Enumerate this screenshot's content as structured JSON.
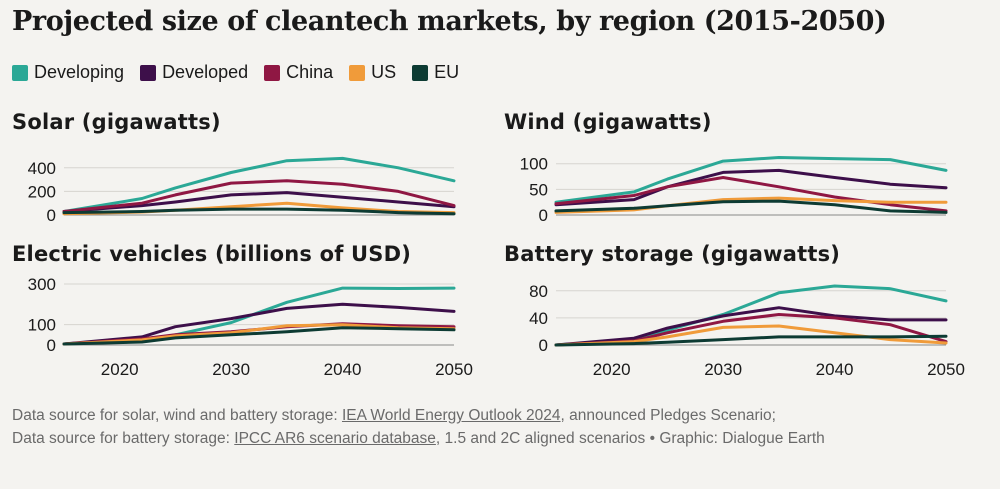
{
  "title": "Projected size of cleantech markets, by region (2015-2050)",
  "legend": [
    {
      "label": "Developing",
      "color": "#2ba896"
    },
    {
      "label": "Developed",
      "color": "#3d0f4a"
    },
    {
      "label": "China",
      "color": "#8f1743"
    },
    {
      "label": "US",
      "color": "#f09b3a"
    },
    {
      "label": "EU",
      "color": "#0d3b33"
    }
  ],
  "source": {
    "line1_prefix": "Data source for solar, wind and battery storage: ",
    "line1_link": "IEA World Energy Outlook 2024",
    "line1_suffix": ", announced Pledges Scenario;",
    "line2_prefix": "Data source for battery storage: ",
    "line2_link": "IPCC AR6 scenario database",
    "line2_suffix": ", 1.5 and 2C aligned scenarios • Graphic: Dialogue Earth"
  },
  "chart_data": [
    {
      "type": "line",
      "title": "Solar (gigawatts)",
      "x": [
        2015,
        2022,
        2025,
        2030,
        2035,
        2040,
        2045,
        2050
      ],
      "xlim": [
        2015,
        2050
      ],
      "ylim": [
        0,
        500
      ],
      "yticks": [
        0,
        200,
        400
      ],
      "xticks": [
        2020,
        2030,
        2040,
        2050
      ],
      "series": [
        {
          "name": "Developing",
          "color": "#2ba896",
          "values": [
            30,
            140,
            230,
            360,
            460,
            480,
            400,
            290
          ]
        },
        {
          "name": "Developed",
          "color": "#3d0f4a",
          "values": [
            30,
            80,
            110,
            170,
            190,
            150,
            110,
            70
          ]
        },
        {
          "name": "China",
          "color": "#8f1743",
          "values": [
            30,
            100,
            170,
            270,
            290,
            260,
            200,
            80
          ]
        },
        {
          "name": "US",
          "color": "#f09b3a",
          "values": [
            10,
            25,
            40,
            70,
            100,
            60,
            30,
            20
          ]
        },
        {
          "name": "EU",
          "color": "#0d3b33",
          "values": [
            20,
            30,
            40,
            50,
            50,
            40,
            20,
            10
          ]
        }
      ]
    },
    {
      "type": "line",
      "title": "Wind (gigawatts)",
      "x": [
        2015,
        2022,
        2025,
        2030,
        2035,
        2040,
        2045,
        2050
      ],
      "xlim": [
        2015,
        2050
      ],
      "ylim": [
        0,
        115
      ],
      "yticks": [
        0,
        50,
        100
      ],
      "xticks": [
        2020,
        2030,
        2040,
        2050
      ],
      "series": [
        {
          "name": "Developing",
          "color": "#2ba896",
          "values": [
            25,
            45,
            70,
            105,
            112,
            110,
            108,
            87
          ]
        },
        {
          "name": "Developed",
          "color": "#3d0f4a",
          "values": [
            20,
            30,
            55,
            83,
            87,
            73,
            60,
            53
          ]
        },
        {
          "name": "China",
          "color": "#8f1743",
          "values": [
            22,
            38,
            55,
            73,
            55,
            35,
            20,
            8
          ]
        },
        {
          "name": "US",
          "color": "#f09b3a",
          "values": [
            5,
            10,
            18,
            30,
            33,
            28,
            25,
            25
          ]
        },
        {
          "name": "EU",
          "color": "#0d3b33",
          "values": [
            8,
            13,
            18,
            26,
            27,
            20,
            8,
            5
          ]
        }
      ]
    },
    {
      "type": "line",
      "title": "Electric vehicles (billions of USD)",
      "x": [
        2015,
        2022,
        2025,
        2030,
        2035,
        2040,
        2045,
        2050
      ],
      "xlim": [
        2015,
        2050
      ],
      "ylim": [
        0,
        300
      ],
      "yticks": [
        0,
        100,
        300
      ],
      "xticks": [
        2020,
        2030,
        2040,
        2050
      ],
      "series": [
        {
          "name": "Developing",
          "color": "#2ba896",
          "values": [
            5,
            20,
            50,
            110,
            210,
            280,
            278,
            280
          ]
        },
        {
          "name": "Developed",
          "color": "#3d0f4a",
          "values": [
            5,
            40,
            90,
            130,
            180,
            200,
            185,
            165
          ]
        },
        {
          "name": "China",
          "color": "#8f1743",
          "values": [
            5,
            30,
            50,
            65,
            90,
            105,
            95,
            90
          ]
        },
        {
          "name": "US",
          "color": "#f09b3a",
          "values": [
            5,
            25,
            45,
            60,
            95,
            100,
            85,
            80
          ]
        },
        {
          "name": "EU",
          "color": "#0d3b33",
          "values": [
            5,
            15,
            35,
            50,
            65,
            85,
            80,
            75
          ]
        }
      ]
    },
    {
      "type": "line",
      "title": "Battery storage (gigawatts)",
      "x": [
        2015,
        2022,
        2025,
        2030,
        2035,
        2040,
        2045,
        2050
      ],
      "xlim": [
        2015,
        2050
      ],
      "ylim": [
        0,
        90
      ],
      "yticks": [
        0,
        40,
        80
      ],
      "xticks": [
        2020,
        2030,
        2040,
        2050
      ],
      "series": [
        {
          "name": "Developing",
          "color": "#2ba896",
          "values": [
            0,
            8,
            22,
            45,
            77,
            87,
            83,
            65
          ]
        },
        {
          "name": "Developed",
          "color": "#3d0f4a",
          "values": [
            0,
            10,
            25,
            43,
            55,
            43,
            37,
            37
          ]
        },
        {
          "name": "China",
          "color": "#8f1743",
          "values": [
            0,
            6,
            18,
            35,
            45,
            40,
            30,
            5
          ]
        },
        {
          "name": "US",
          "color": "#f09b3a",
          "values": [
            0,
            5,
            12,
            26,
            28,
            18,
            8,
            3
          ]
        },
        {
          "name": "EU",
          "color": "#0d3b33",
          "values": [
            0,
            2,
            4,
            8,
            12,
            12,
            12,
            13
          ]
        }
      ]
    }
  ]
}
